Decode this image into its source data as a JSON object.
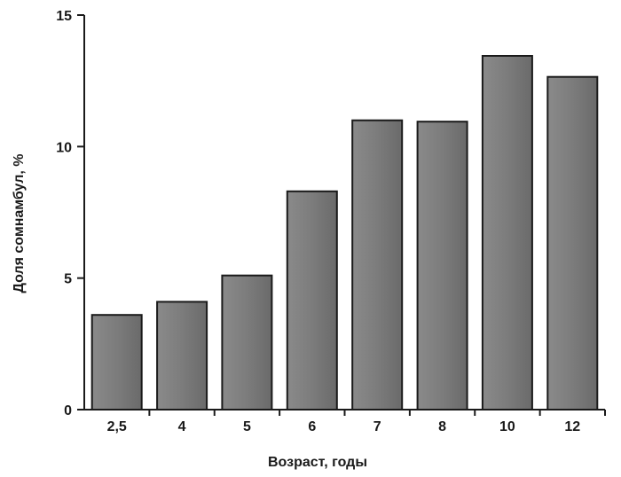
{
  "chart_data": {
    "type": "bar",
    "categories": [
      "2,5",
      "4",
      "5",
      "6",
      "7",
      "8",
      "10",
      "12"
    ],
    "values": [
      3.6,
      4.1,
      5.1,
      8.3,
      11.0,
      10.95,
      13.45,
      12.65
    ],
    "title": "",
    "xlabel": "Возраст, годы",
    "ylabel": "Доля сомнамбул, %",
    "ylim": [
      0,
      15
    ],
    "yticks": [
      0,
      5,
      10,
      15
    ],
    "grid": false,
    "legend": "none",
    "bar_color": "#7a7a7a",
    "bar_stroke": "#1a1a1a"
  }
}
